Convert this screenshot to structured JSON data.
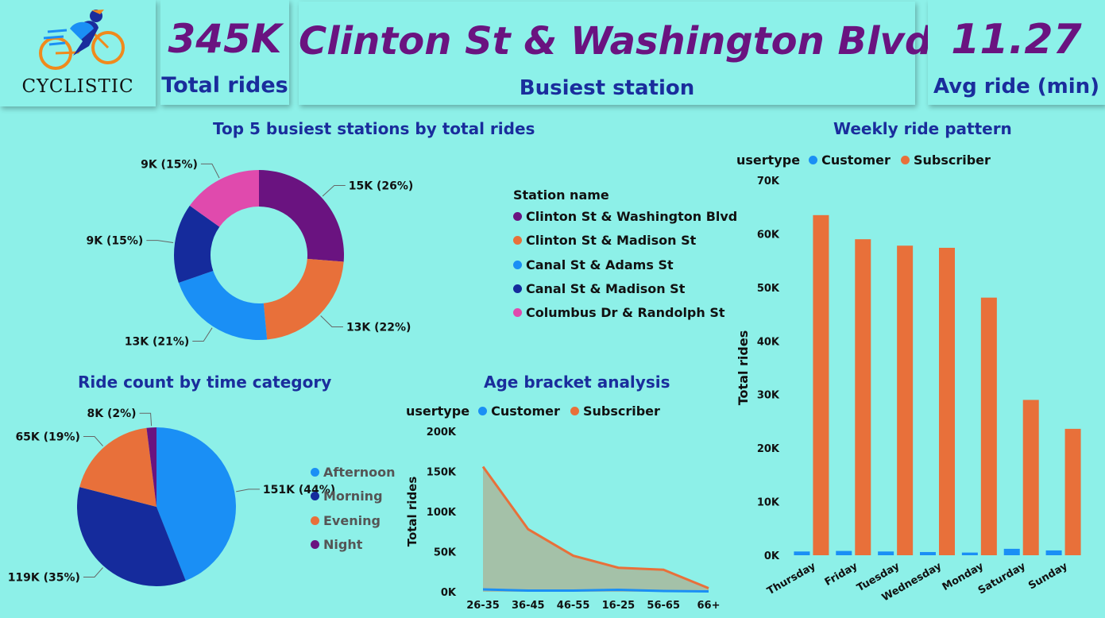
{
  "brand": {
    "logo_text": "CYCLISTIC"
  },
  "kpis": {
    "total_rides": {
      "value": "345K",
      "label": "Total rides"
    },
    "busiest_station": {
      "value": "Clinton St & Washington Blvd",
      "label": "Busiest station"
    },
    "avg_ride": {
      "value": "11.27",
      "label": "Avg ride (min)"
    }
  },
  "colors": {
    "purple": "#6a1380",
    "orange": "#e8703a",
    "light_blue": "#1a8ff5",
    "dark_blue": "#152b9c",
    "pink": "#e04aad",
    "background": "#8df0e8"
  },
  "chart_data": [
    {
      "type": "pie",
      "subtype": "donut",
      "title": "Top 5 busiest stations by total rides",
      "legend_title": "Station name",
      "legend_position": "right",
      "categories": [
        "Clinton St & Washington Blvd",
        "Clinton St & Madison St",
        "Canal St & Adams St",
        "Canal St & Madison St",
        "Columbus Dr & Randolph St"
      ],
      "values": [
        15,
        13,
        13,
        9,
        9
      ],
      "percents": [
        26,
        22,
        21,
        15,
        15
      ],
      "labels": [
        "15K (26%)",
        "13K (22%)",
        "13K (21%)",
        "9K (15%)",
        "9K (15%)"
      ]
    },
    {
      "type": "pie",
      "title": "Ride count by time category",
      "legend_position": "right",
      "categories": [
        "Afternoon",
        "Morning",
        "Evening",
        "Night"
      ],
      "values": [
        151,
        119,
        65,
        8
      ],
      "percents": [
        44,
        35,
        19,
        2
      ],
      "labels": [
        "151K (44%)",
        "119K (35%)",
        "65K (19%)",
        "8K (2%)"
      ]
    },
    {
      "type": "area",
      "title": "Age bracket analysis",
      "ylabel": "Total rides",
      "legend_title": "usertype",
      "legend_position": "top",
      "categories": [
        "26-35",
        "36-45",
        "46-55",
        "16-25",
        "56-65",
        "66+"
      ],
      "ylim": [
        0,
        200000
      ],
      "yticks": [
        "200K",
        "150K",
        "100K",
        "50K",
        "0K"
      ],
      "series": [
        {
          "name": "Customer",
          "values": [
            3000,
            1500,
            1500,
            2500,
            1000,
            500
          ]
        },
        {
          "name": "Subscriber",
          "values": [
            156000,
            78000,
            45000,
            30000,
            27500,
            4500
          ]
        }
      ]
    },
    {
      "type": "bar",
      "title": "Weekly ride pattern",
      "ylabel": "Total rides",
      "legend_title": "usertype",
      "legend_position": "top",
      "categories": [
        "Thursday",
        "Friday",
        "Tuesday",
        "Wednesday",
        "Monday",
        "Saturday",
        "Sunday"
      ],
      "ylim": [
        0,
        70000
      ],
      "yticks": [
        "70K",
        "60K",
        "50K",
        "40K",
        "30K",
        "20K",
        "10K",
        "0K"
      ],
      "series": [
        {
          "name": "Customer",
          "values": [
            700,
            800,
            700,
            600,
            500,
            1200,
            900
          ]
        },
        {
          "name": "Subscriber",
          "values": [
            63500,
            59000,
            57800,
            57400,
            48100,
            29000,
            23600
          ]
        }
      ]
    }
  ]
}
